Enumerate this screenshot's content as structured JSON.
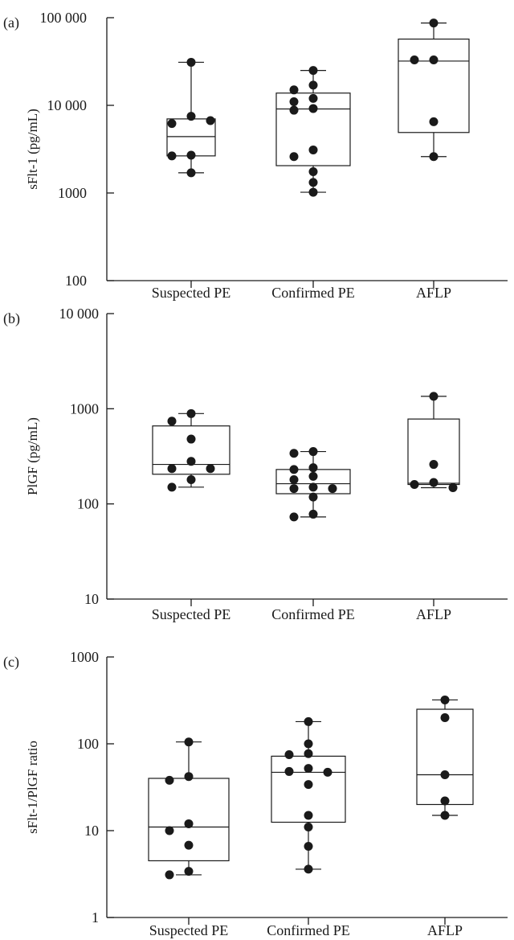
{
  "chart_data": [
    {
      "type": "box",
      "panel_label": "(a)",
      "ylabel": "sFlt-1 (pg/mL)",
      "yscale": "log",
      "ylim": [
        100,
        100000
      ],
      "yticks": [
        100,
        1000,
        10000,
        100000
      ],
      "ytick_labels": [
        "100",
        "1000",
        "10 000",
        "100 000"
      ],
      "categories": [
        "Suspected PE",
        "Confirmed PE",
        "AFLP"
      ],
      "groups": [
        {
          "name": "Suspected PE",
          "min": 1700,
          "q1": 2650,
          "median": 4400,
          "q3": 7000,
          "max": 31000,
          "points": [
            31000,
            7500,
            6200,
            6700,
            2700,
            2650,
            1700
          ]
        },
        {
          "name": "Confirmed PE",
          "min": 1020,
          "q1": 2050,
          "median": 9100,
          "q3": 13800,
          "max": 25000,
          "points": [
            25000,
            17000,
            15000,
            12000,
            11000,
            9200,
            8800,
            3100,
            2600,
            1750,
            1320,
            1020
          ]
        },
        {
          "name": "AFLP",
          "min": 2600,
          "q1": 4900,
          "median": 32000,
          "q3": 57000,
          "max": 87000,
          "points": [
            87000,
            33000,
            33000,
            6500,
            2600
          ]
        }
      ]
    },
    {
      "type": "box",
      "panel_label": "(b)",
      "ylabel": "PlGF (pg/mL)",
      "yscale": "log",
      "ylim": [
        10,
        10000
      ],
      "yticks": [
        10,
        100,
        1000,
        10000
      ],
      "ytick_labels": [
        "10",
        "100",
        "1000",
        "10 000"
      ],
      "categories": [
        "Suspected PE",
        "Confirmed PE",
        "AFLP"
      ],
      "groups": [
        {
          "name": "Suspected PE",
          "min": 150,
          "q1": 205,
          "median": 260,
          "q3": 660,
          "max": 890,
          "points": [
            890,
            740,
            480,
            280,
            235,
            235,
            180,
            150
          ]
        },
        {
          "name": "Confirmed PE",
          "min": 73,
          "q1": 128,
          "median": 163,
          "q3": 230,
          "max": 355,
          "points": [
            355,
            340,
            240,
            230,
            195,
            180,
            150,
            145,
            145,
            118,
            78,
            73
          ]
        },
        {
          "name": "AFLP",
          "min": 148,
          "q1": 160,
          "median": 165,
          "q3": 780,
          "max": 1350,
          "points": [
            1350,
            260,
            168,
            160,
            148
          ]
        }
      ]
    },
    {
      "type": "box",
      "panel_label": "(c)",
      "ylabel": "sFlt-1/PlGF ratio",
      "yscale": "log",
      "ylim": [
        1,
        1000
      ],
      "yticks": [
        1,
        10,
        100,
        1000
      ],
      "ytick_labels": [
        "1",
        "10",
        "100",
        "1000"
      ],
      "categories": [
        "Suspected PE",
        "Confirmed PE",
        "AFLP"
      ],
      "groups": [
        {
          "name": "Suspected PE",
          "min": 3.1,
          "q1": 4.5,
          "median": 11,
          "q3": 40,
          "max": 105,
          "points": [
            105,
            42,
            38,
            12,
            10,
            6.8,
            3.4,
            3.1
          ]
        },
        {
          "name": "Confirmed PE",
          "min": 3.6,
          "q1": 12.5,
          "median": 47,
          "q3": 72,
          "max": 180,
          "points": [
            180,
            100,
            77,
            75,
            52,
            48,
            47,
            34,
            15,
            11,
            6.6,
            3.6
          ]
        },
        {
          "name": "AFLP",
          "min": 15,
          "q1": 20,
          "median": 44,
          "q3": 250,
          "max": 320,
          "points": [
            320,
            200,
            44,
            22,
            15
          ]
        }
      ]
    }
  ]
}
